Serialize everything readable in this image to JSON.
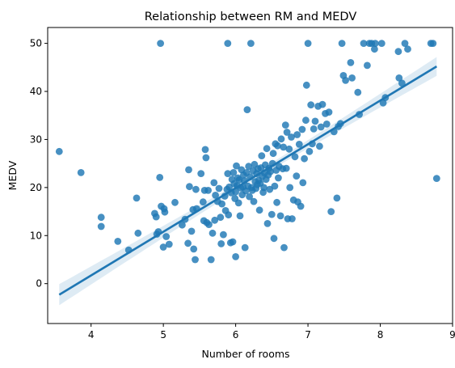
{
  "chart_data": {
    "type": "scatter",
    "title": "Relationship between RM and MEDV",
    "xlabel": "Number of rooms",
    "ylabel": "MEDV",
    "xlim": [
      3.4,
      9.0
    ],
    "ylim": [
      -8.3,
      53.3
    ],
    "xticks": [
      "4",
      "5",
      "6",
      "7",
      "8",
      "9"
    ],
    "yticks": [
      "0",
      "10",
      "20",
      "30",
      "40",
      "50"
    ],
    "grid": false,
    "colors": {
      "points": "#1f77b4",
      "line": "#1f77b4",
      "band": "#1f77b4"
    },
    "regression": {
      "slope": 9.1,
      "intercept": -34.7,
      "ci_band": true
    },
    "points": [
      [
        3.56,
        27.5
      ],
      [
        3.86,
        23.1
      ],
      [
        4.14,
        13.8
      ],
      [
        4.14,
        11.9
      ],
      [
        4.37,
        8.8
      ],
      [
        4.52,
        7.0
      ],
      [
        4.63,
        17.8
      ],
      [
        4.65,
        10.5
      ],
      [
        4.88,
        14.6
      ],
      [
        4.9,
        13.9
      ],
      [
        4.91,
        10.3
      ],
      [
        4.93,
        10.8
      ],
      [
        4.95,
        22.1
      ],
      [
        4.96,
        50.0
      ],
      [
        4.97,
        16.1
      ],
      [
        5.0,
        7.6
      ],
      [
        5.01,
        15.6
      ],
      [
        5.02,
        14.9
      ],
      [
        5.04,
        9.8
      ],
      [
        5.08,
        8.2
      ],
      [
        5.16,
        16.9
      ],
      [
        5.26,
        12.2
      ],
      [
        5.3,
        13.4
      ],
      [
        5.34,
        8.4
      ],
      [
        5.35,
        23.7
      ],
      [
        5.36,
        20.2
      ],
      [
        5.39,
        10.9
      ],
      [
        5.41,
        15.4
      ],
      [
        5.42,
        7.2
      ],
      [
        5.44,
        5.0
      ],
      [
        5.45,
        19.6
      ],
      [
        5.46,
        15.6
      ],
      [
        5.52,
        22.9
      ],
      [
        5.55,
        17.0
      ],
      [
        5.56,
        13.1
      ],
      [
        5.57,
        19.4
      ],
      [
        5.58,
        27.9
      ],
      [
        5.59,
        26.2
      ],
      [
        5.6,
        12.7
      ],
      [
        5.62,
        19.4
      ],
      [
        5.63,
        12.3
      ],
      [
        5.66,
        5.0
      ],
      [
        5.68,
        10.5
      ],
      [
        5.7,
        21.0
      ],
      [
        5.71,
        13.2
      ],
      [
        5.72,
        18.4
      ],
      [
        5.75,
        17.1
      ],
      [
        5.77,
        19.8
      ],
      [
        5.79,
        13.8
      ],
      [
        5.8,
        8.3
      ],
      [
        5.81,
        16.6
      ],
      [
        5.83,
        10.2
      ],
      [
        5.85,
        18.2
      ],
      [
        5.86,
        15.2
      ],
      [
        5.88,
        19.6
      ],
      [
        5.89,
        50.0
      ],
      [
        5.89,
        22.9
      ],
      [
        5.9,
        14.3
      ],
      [
        5.91,
        20.1
      ],
      [
        5.93,
        8.5
      ],
      [
        5.94,
        18.9
      ],
      [
        5.95,
        21.7
      ],
      [
        5.96,
        8.7
      ],
      [
        5.97,
        23.1
      ],
      [
        5.98,
        20.8
      ],
      [
        5.99,
        17.7
      ],
      [
        6.0,
        19.1
      ],
      [
        6.0,
        5.6
      ],
      [
        6.01,
        24.5
      ],
      [
        6.02,
        20.4
      ],
      [
        6.03,
        22.0
      ],
      [
        6.04,
        16.8
      ],
      [
        6.05,
        21.6
      ],
      [
        6.06,
        14.1
      ],
      [
        6.07,
        19.9
      ],
      [
        6.08,
        23.7
      ],
      [
        6.09,
        18.5
      ],
      [
        6.1,
        20.1
      ],
      [
        6.11,
        22.6
      ],
      [
        6.12,
        21.4
      ],
      [
        6.13,
        7.5
      ],
      [
        6.14,
        19.3
      ],
      [
        6.15,
        23.1
      ],
      [
        6.16,
        36.2
      ],
      [
        6.17,
        20.3
      ],
      [
        6.18,
        24.4
      ],
      [
        6.19,
        18.1
      ],
      [
        6.2,
        22.2
      ],
      [
        6.21,
        50.0
      ],
      [
        6.22,
        20.0
      ],
      [
        6.23,
        19.4
      ],
      [
        6.24,
        23.5
      ],
      [
        6.25,
        17.1
      ],
      [
        6.26,
        24.8
      ],
      [
        6.27,
        21.2
      ],
      [
        6.28,
        19.8
      ],
      [
        6.29,
        22.9
      ],
      [
        6.3,
        20.6
      ],
      [
        6.31,
        23.9
      ],
      [
        6.32,
        21.5
      ],
      [
        6.33,
        15.3
      ],
      [
        6.34,
        20.9
      ],
      [
        6.35,
        24.1
      ],
      [
        6.36,
        26.6
      ],
      [
        6.37,
        22.3
      ],
      [
        6.38,
        19.0
      ],
      [
        6.39,
        20.0
      ],
      [
        6.4,
        23.0
      ],
      [
        6.41,
        24.7
      ],
      [
        6.42,
        21.7
      ],
      [
        6.43,
        28.1
      ],
      [
        6.44,
        12.5
      ],
      [
        6.45,
        22.6
      ],
      [
        6.46,
        24.0
      ],
      [
        6.47,
        19.6
      ],
      [
        6.48,
        23.3
      ],
      [
        6.5,
        14.4
      ],
      [
        6.51,
        25.0
      ],
      [
        6.52,
        27.1
      ],
      [
        6.53,
        9.4
      ],
      [
        6.54,
        20.3
      ],
      [
        6.55,
        29.1
      ],
      [
        6.56,
        23.6
      ],
      [
        6.57,
        16.9
      ],
      [
        6.58,
        28.7
      ],
      [
        6.59,
        22.0
      ],
      [
        6.6,
        24.4
      ],
      [
        6.62,
        14.1
      ],
      [
        6.63,
        30.1
      ],
      [
        6.65,
        23.9
      ],
      [
        6.66,
        28.4
      ],
      [
        6.67,
        7.5
      ],
      [
        6.69,
        33.0
      ],
      [
        6.7,
        24.0
      ],
      [
        6.71,
        31.5
      ],
      [
        6.72,
        13.5
      ],
      [
        6.74,
        28.0
      ],
      [
        6.75,
        20.0
      ],
      [
        6.77,
        30.5
      ],
      [
        6.78,
        13.5
      ],
      [
        6.8,
        17.4
      ],
      [
        6.82,
        26.4
      ],
      [
        6.84,
        22.4
      ],
      [
        6.85,
        31.0
      ],
      [
        6.86,
        17.0
      ],
      [
        6.88,
        29.0
      ],
      [
        6.9,
        16.1
      ],
      [
        6.92,
        32.1
      ],
      [
        6.93,
        21.0
      ],
      [
        6.95,
        26.0
      ],
      [
        6.97,
        34.0
      ],
      [
        6.98,
        41.3
      ],
      [
        7.0,
        50.0
      ],
      [
        7.02,
        27.5
      ],
      [
        7.04,
        37.2
      ],
      [
        7.06,
        29.1
      ],
      [
        7.08,
        32.2
      ],
      [
        7.1,
        33.8
      ],
      [
        7.14,
        36.9
      ],
      [
        7.16,
        28.6
      ],
      [
        7.18,
        32.6
      ],
      [
        7.2,
        37.3
      ],
      [
        7.24,
        35.4
      ],
      [
        7.26,
        33.2
      ],
      [
        7.29,
        35.7
      ],
      [
        7.32,
        15.0
      ],
      [
        7.36,
        31.6
      ],
      [
        7.4,
        17.8
      ],
      [
        7.42,
        32.7
      ],
      [
        7.45,
        33.3
      ],
      [
        7.47,
        50.0
      ],
      [
        7.49,
        43.3
      ],
      [
        7.52,
        42.3
      ],
      [
        7.59,
        46.0
      ],
      [
        7.61,
        42.8
      ],
      [
        7.69,
        39.8
      ],
      [
        7.71,
        35.2
      ],
      [
        7.77,
        50.0
      ],
      [
        7.82,
        45.4
      ],
      [
        7.85,
        50.0
      ],
      [
        7.88,
        50.0
      ],
      [
        7.92,
        48.8
      ],
      [
        7.93,
        50.0
      ],
      [
        8.02,
        50.0
      ],
      [
        8.04,
        37.6
      ],
      [
        8.07,
        38.7
      ],
      [
        8.25,
        48.3
      ],
      [
        8.26,
        42.8
      ],
      [
        8.3,
        41.7
      ],
      [
        8.34,
        50.0
      ],
      [
        8.38,
        48.8
      ],
      [
        8.7,
        50.0
      ],
      [
        8.73,
        50.0
      ],
      [
        8.78,
        21.9
      ]
    ]
  }
}
